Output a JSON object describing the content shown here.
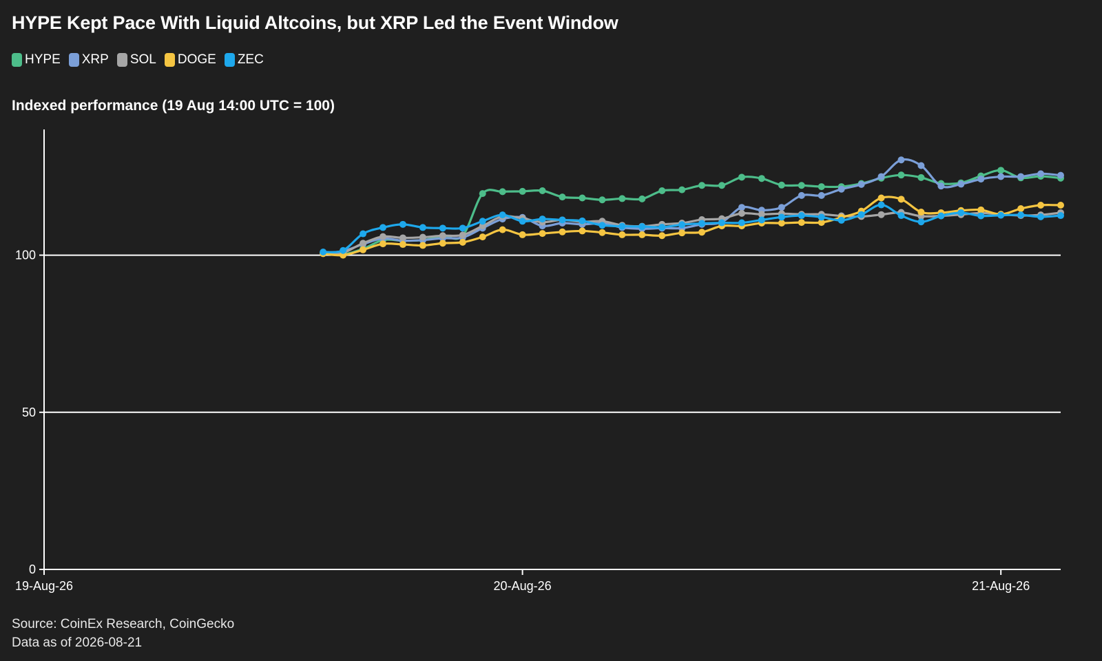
{
  "header": {
    "title": "HYPE Kept Pace With Liquid Altcoins, but XRP Led the Event Window",
    "subtitle": "Indexed performance (19 Aug 14:00 UTC = 100)"
  },
  "legend": [
    {
      "label": "HYPE",
      "color": "#4dbd8a"
    },
    {
      "label": "XRP",
      "color": "#7b9fd8"
    },
    {
      "label": "SOL",
      "color": "#a6a6a6"
    },
    {
      "label": "DOGE",
      "color": "#f5c542"
    },
    {
      "label": "ZEC",
      "color": "#1ea8ec"
    }
  ],
  "footer": {
    "source": "Source: CoinEx Research, CoinGecko",
    "asof": "Data as of 2026-08-21"
  },
  "chart_data": {
    "type": "line",
    "title": "HYPE Kept Pace With Liquid Altcoins, but XRP Led the Event Window",
    "subtitle": "Indexed performance (19 Aug 14:00 UTC = 100)",
    "xlabel": "",
    "ylabel": "",
    "x_axis": {
      "type": "time",
      "start": "2026-08-19 00:00",
      "end": "2026-08-21 03:00",
      "ticks": [
        {
          "label": "19-Aug-26",
          "value": "2026-08-19 00:00"
        },
        {
          "label": "20-Aug-26",
          "value": "2026-08-20 00:00"
        },
        {
          "label": "21-Aug-26",
          "value": "2026-08-21 00:00"
        }
      ]
    },
    "ylim": [
      0,
      140
    ],
    "y_ticks": [
      0,
      50,
      100
    ],
    "grid": "horizontal",
    "legend_position": "top-left",
    "x": [
      "2026-08-19 14:00",
      "2026-08-19 15:00",
      "2026-08-19 16:00",
      "2026-08-19 17:00",
      "2026-08-19 18:00",
      "2026-08-19 19:00",
      "2026-08-19 20:00",
      "2026-08-19 21:00",
      "2026-08-19 22:00",
      "2026-08-19 23:00",
      "2026-08-20 00:00",
      "2026-08-20 01:00",
      "2026-08-20 02:00",
      "2026-08-20 03:00",
      "2026-08-20 04:00",
      "2026-08-20 05:00",
      "2026-08-20 06:00",
      "2026-08-20 07:00",
      "2026-08-20 08:00",
      "2026-08-20 09:00",
      "2026-08-20 10:00",
      "2026-08-20 11:00",
      "2026-08-20 12:00",
      "2026-08-20 13:00",
      "2026-08-20 14:00",
      "2026-08-20 15:00",
      "2026-08-20 16:00",
      "2026-08-20 17:00",
      "2026-08-20 18:00",
      "2026-08-20 19:00",
      "2026-08-20 20:00",
      "2026-08-20 21:00",
      "2026-08-20 22:00",
      "2026-08-20 23:00",
      "2026-08-21 00:00",
      "2026-08-21 01:00",
      "2026-08-21 02:00",
      "2026-08-21 03:00"
    ],
    "series": [
      {
        "name": "HYPE",
        "color": "#4dbd8a",
        "values": [
          100.8,
          100.3,
          102.0,
          104.8,
          104.6,
          104.8,
          106.0,
          106.2,
          119.6,
          120.2,
          120.3,
          120.5,
          118.5,
          118.2,
          117.6,
          118.0,
          117.9,
          120.5,
          120.8,
          122.2,
          122.2,
          124.8,
          124.4,
          122.3,
          122.2,
          121.8,
          121.8,
          122.8,
          124.5,
          125.5,
          124.7,
          122.8,
          123.0,
          125.2,
          127.0,
          124.6,
          125.1,
          124.5
        ]
      },
      {
        "name": "XRP",
        "color": "#7b9fd8",
        "values": [
          100.8,
          101.3,
          103.5,
          105.3,
          104.6,
          104.8,
          105.4,
          105.6,
          108.6,
          111.5,
          112.0,
          109.3,
          110.2,
          109.8,
          110.1,
          108.8,
          108.4,
          108.6,
          108.6,
          109.8,
          110.5,
          115.2,
          114.3,
          115.2,
          119.0,
          119.0,
          121.0,
          122.5,
          125.0,
          130.3,
          128.5,
          122.0,
          122.6,
          124.2,
          125.0,
          125.0,
          125.9,
          125.4
        ]
      },
      {
        "name": "SOL",
        "color": "#a6a6a6",
        "values": [
          100.5,
          100.8,
          103.8,
          105.9,
          105.5,
          105.7,
          106.2,
          106.4,
          109.3,
          112.3,
          111.7,
          110.5,
          111.2,
          110.6,
          110.8,
          109.5,
          109.2,
          109.8,
          110.2,
          111.3,
          111.6,
          113.3,
          113.0,
          113.2,
          113.0,
          113.0,
          112.5,
          112.3,
          112.9,
          113.6,
          112.4,
          112.5,
          112.9,
          113.4,
          113.0,
          112.6,
          112.8,
          113.5
        ]
      },
      {
        "name": "DOGE",
        "color": "#f5c542",
        "values": [
          100.5,
          100.0,
          101.7,
          103.6,
          103.4,
          103.1,
          103.8,
          104.1,
          105.8,
          108.1,
          106.5,
          106.9,
          107.4,
          107.7,
          107.2,
          106.5,
          106.5,
          106.2,
          107.1,
          107.3,
          109.3,
          109.3,
          110.2,
          110.2,
          110.4,
          110.4,
          112.0,
          114.0,
          118.2,
          117.8,
          113.7,
          113.5,
          114.2,
          114.4,
          113.0,
          114.8,
          115.9,
          115.9
        ]
      },
      {
        "name": "ZEC",
        "color": "#1ea8ec",
        "values": [
          101.0,
          101.5,
          106.8,
          108.8,
          109.8,
          108.8,
          108.6,
          108.6,
          110.8,
          112.8,
          110.8,
          111.5,
          111.2,
          110.9,
          109.5,
          109.2,
          109.1,
          108.9,
          109.7,
          110.1,
          110.3,
          110.3,
          111.2,
          112.1,
          112.6,
          112.1,
          111.1,
          112.9,
          116.0,
          112.6,
          110.6,
          112.5,
          113.5,
          112.5,
          112.7,
          112.8,
          112.2,
          112.6
        ]
      }
    ]
  }
}
